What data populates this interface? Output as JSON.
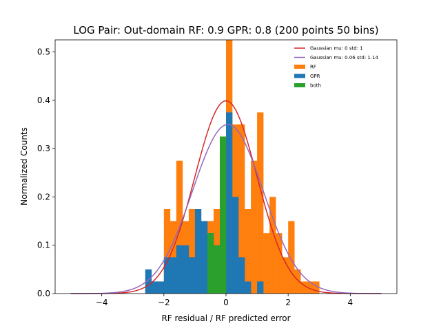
{
  "chart_data": {
    "type": "histogram",
    "title": "LOG Pair: Out-domain RF: 0.9 GPR: 0.8 (200 points 50 bins)",
    "xlabel": "RF residual / RF predicted error",
    "ylabel": "Normalized Counts",
    "xlim": [
      -5.5,
      5.5
    ],
    "ylim": [
      0,
      0.525
    ],
    "xticks": [
      -4,
      -2,
      0,
      2,
      4
    ],
    "xtick_labels": [
      "−4",
      "−2",
      "0",
      "2",
      "4"
    ],
    "yticks": [
      0.0,
      0.1,
      0.2,
      0.3,
      0.4,
      0.5
    ],
    "ytick_labels": [
      "0.0",
      "0.1",
      "0.2",
      "0.3",
      "0.4",
      "0.5"
    ],
    "grid": false,
    "legend_position": "top-right",
    "bin_width": 0.2,
    "histograms": [
      {
        "name": "RF",
        "color": "#ff7f0e",
        "bins": [
          [
            -2.6,
            0.025
          ],
          [
            -2.4,
            0.025
          ],
          [
            -2.2,
            0.025
          ],
          [
            -2.0,
            0.175
          ],
          [
            -1.8,
            0.15
          ],
          [
            -1.6,
            0.275
          ],
          [
            -1.4,
            0.15
          ],
          [
            -1.2,
            0.175
          ],
          [
            -1.0,
            0.1
          ],
          [
            -0.8,
            0.1
          ],
          [
            -0.6,
            0.15
          ],
          [
            -0.4,
            0.175
          ],
          [
            -0.2,
            0.325
          ],
          [
            0.0,
            0.525
          ],
          [
            0.2,
            0.35
          ],
          [
            0.4,
            0.35
          ],
          [
            0.6,
            0.175
          ],
          [
            0.8,
            0.275
          ],
          [
            1.0,
            0.375
          ],
          [
            1.2,
            0.125
          ],
          [
            1.4,
            0.2
          ],
          [
            1.6,
            0.125
          ],
          [
            1.8,
            0.075
          ],
          [
            2.0,
            0.15
          ],
          [
            2.2,
            0.05
          ],
          [
            2.4,
            0.025
          ],
          [
            2.6,
            0.025
          ],
          [
            2.8,
            0.025
          ]
        ]
      },
      {
        "name": "GPR",
        "color": "#1f77b4",
        "bins": [
          [
            -2.6,
            0.05
          ],
          [
            -2.4,
            0.025
          ],
          [
            -2.2,
            0.025
          ],
          [
            -2.0,
            0.075
          ],
          [
            -1.8,
            0.075
          ],
          [
            -1.6,
            0.1
          ],
          [
            -1.4,
            0.1
          ],
          [
            -1.2,
            0.075
          ],
          [
            -1.0,
            0.175
          ],
          [
            -0.8,
            0.15
          ],
          [
            -0.6,
            0.125
          ],
          [
            -0.4,
            0.1
          ],
          [
            -0.2,
            0.3
          ],
          [
            0.0,
            0.375
          ],
          [
            0.2,
            0.2
          ],
          [
            0.4,
            0.075
          ],
          [
            0.6,
            0.025
          ],
          [
            1.0,
            0.025
          ]
        ]
      },
      {
        "name": "both",
        "color": "#2ca02c",
        "bins": [
          [
            -0.6,
            0.125
          ],
          [
            -0.4,
            0.1
          ],
          [
            -0.2,
            0.325
          ]
        ]
      }
    ],
    "curves": [
      {
        "name": "Gaussian mu: 0 std: 1",
        "color": "#d62728",
        "mu": 0,
        "std": 1,
        "x_range": [
          -5,
          5
        ]
      },
      {
        "name": "Gaussian mu: 0.06 std: 1.14",
        "color": "#9467bd",
        "mu": 0.06,
        "std": 1.14,
        "x_range": [
          -5,
          5
        ]
      }
    ]
  }
}
